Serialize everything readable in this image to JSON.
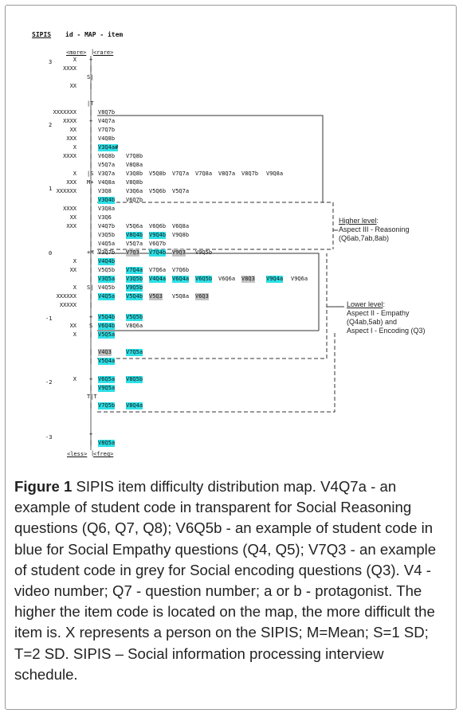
{
  "header": {
    "title": "SIPIS",
    "subtitle": "id - MAP - item"
  },
  "top_labels": {
    "left": "<more>",
    "right": "<rare>"
  },
  "bottom_labels": {
    "left": "<less>",
    "right": "<freq>"
  },
  "scale": [
    "3",
    "2",
    "1",
    "0",
    "-1",
    "-2",
    "-3"
  ],
  "rows": [
    {
      "y": 75,
      "x": "X",
      "m": "+",
      "items": []
    },
    {
      "y": 86,
      "x": "XXXX",
      "m": "|",
      "items": []
    },
    {
      "y": 97,
      "x": "",
      "m": "S|",
      "items": []
    },
    {
      "y": 108,
      "x": "XX",
      "m": "|",
      "items": []
    },
    {
      "y": 130,
      "x": "",
      "m": "|T",
      "items": []
    },
    {
      "y": 141,
      "x": "XXXXXXX",
      "m": "|",
      "items": [
        {
          "t": "V8Q7b",
          "c": "n"
        }
      ]
    },
    {
      "y": 152,
      "x": "XXXX",
      "m": "+",
      "items": [
        {
          "t": "V4Q7a",
          "c": "n"
        }
      ]
    },
    {
      "y": 163,
      "x": "XX",
      "m": "|",
      "items": [
        {
          "t": "V7Q7b",
          "c": "n"
        }
      ]
    },
    {
      "y": 174,
      "x": "XXX",
      "m": "|",
      "items": [
        {
          "t": "V4Q8b",
          "c": "n"
        }
      ]
    },
    {
      "y": 185,
      "x": "X",
      "m": "|",
      "items": [
        {
          "t": "V3Q4a#",
          "c": "b"
        }
      ]
    },
    {
      "y": 196,
      "x": "XXXX",
      "m": "|",
      "items": [
        {
          "t": "V6Q8b",
          "c": "n"
        },
        {
          "t": "V7Q8b",
          "c": "n"
        }
      ]
    },
    {
      "y": 207,
      "x": "",
      "m": "|",
      "items": [
        {
          "t": "V5Q7a",
          "c": "n"
        },
        {
          "t": "V8Q8a",
          "c": "n"
        }
      ]
    },
    {
      "y": 218,
      "x": "X",
      "m": "|S",
      "items": [
        {
          "t": "V3Q7a",
          "c": "n"
        },
        {
          "t": "V3Q8b",
          "c": "n"
        },
        {
          "t": "V5Q8b",
          "c": "n"
        },
        {
          "t": "V7Q7a",
          "c": "n"
        },
        {
          "t": "V7Q8a",
          "c": "n"
        },
        {
          "t": "V8Q7a",
          "c": "n"
        },
        {
          "t": "V8Q7b",
          "c": "n"
        },
        {
          "t": "V9Q8a",
          "c": "n"
        }
      ]
    },
    {
      "y": 229,
      "x": "XXX",
      "m": "M+",
      "items": [
        {
          "t": "V4Q8a",
          "c": "n"
        },
        {
          "t": "V8Q8b",
          "c": "n"
        }
      ]
    },
    {
      "y": 240,
      "x": "XXXXXX",
      "m": "|",
      "items": [
        {
          "t": "V3Q8",
          "c": "n"
        },
        {
          "t": "V3Q6a",
          "c": "n"
        },
        {
          "t": "V5Q6b",
          "c": "n"
        },
        {
          "t": "V5Q7a",
          "c": "n"
        }
      ]
    },
    {
      "y": 251,
      "x": "",
      "m": "|",
      "items": [
        {
          "t": "V3Q4b",
          "c": "b"
        },
        {
          "t": "V6Q7b",
          "c": "n"
        }
      ]
    },
    {
      "y": 262,
      "x": "XXXX",
      "m": "|",
      "items": [
        {
          "t": "V3Q8a",
          "c": "n"
        }
      ]
    },
    {
      "y": 273,
      "x": "XX",
      "m": "|",
      "items": [
        {
          "t": "V3Q6",
          "c": "n"
        }
      ]
    },
    {
      "y": 284,
      "x": "XXX",
      "m": "|",
      "items": [
        {
          "t": "V4Q7b",
          "c": "n"
        },
        {
          "t": "V5Q6a",
          "c": "n"
        },
        {
          "t": "V6Q6b",
          "c": "n"
        },
        {
          "t": "V6Q8a",
          "c": "n"
        }
      ]
    },
    {
      "y": 295,
      "x": "",
      "m": "|",
      "items": [
        {
          "t": "V3Q5b",
          "c": "n"
        },
        {
          "t": "V8Q4b",
          "c": "b"
        },
        {
          "t": "V9Q4b",
          "c": "b"
        },
        {
          "t": "V9Q8b",
          "c": "n"
        }
      ]
    },
    {
      "y": 306,
      "x": "",
      "m": "|",
      "items": [
        {
          "t": "V4Q5a",
          "c": "n"
        },
        {
          "t": "V5Q7a",
          "c": "n"
        },
        {
          "t": "V6Q7b",
          "c": "n"
        }
      ]
    },
    {
      "y": 317,
      "x": "",
      "m": "+M",
      "items": [
        {
          "t": "V3Q7b",
          "c": "n"
        },
        {
          "t": "V7Q3",
          "c": "g"
        },
        {
          "t": "V7Q4b",
          "c": "b"
        },
        {
          "t": "V9Q3",
          "c": "g"
        },
        {
          "t": "V9Q5b",
          "c": "n"
        }
      ]
    },
    {
      "y": 328,
      "x": "X",
      "m": "|",
      "items": [
        {
          "t": "V4Q4b",
          "c": "b"
        }
      ]
    },
    {
      "y": 339,
      "x": "XX",
      "m": "|",
      "items": [
        {
          "t": "V5Q5b",
          "c": "n"
        },
        {
          "t": "V7Q4a",
          "c": "b"
        },
        {
          "t": "V7Q6a",
          "c": "n"
        },
        {
          "t": "V7Q6b",
          "c": "n"
        }
      ]
    },
    {
      "y": 350,
      "x": "",
      "m": "|",
      "items": [
        {
          "t": "V3Q5a",
          "c": "b"
        },
        {
          "t": "V3Q5b",
          "c": "b"
        },
        {
          "t": "V4Q4a",
          "c": "b"
        },
        {
          "t": "V6Q4a",
          "c": "b"
        },
        {
          "t": "V6Q5b",
          "c": "b"
        },
        {
          "t": "V6Q6a",
          "c": "n"
        },
        {
          "t": "V8Q3",
          "c": "g"
        },
        {
          "t": "V9Q4a",
          "c": "b"
        },
        {
          "t": "V9Q6a",
          "c": "n"
        }
      ]
    },
    {
      "y": 361,
      "x": "X",
      "m": "S|",
      "items": [
        {
          "t": "V4Q5b",
          "c": "n"
        },
        {
          "t": "V9Q5b",
          "c": "b"
        }
      ]
    },
    {
      "y": 372,
      "x": "XXXXXX",
      "m": "|",
      "items": [
        {
          "t": "V4Q5a",
          "c": "b"
        },
        {
          "t": "V5Q4b",
          "c": "b"
        },
        {
          "t": "V5Q3",
          "c": "g"
        },
        {
          "t": "V5Q8a",
          "c": "n"
        },
        {
          "t": "V6Q3",
          "c": "g"
        }
      ]
    },
    {
      "y": 383,
      "x": "XXXXX",
      "m": "|",
      "items": []
    },
    {
      "y": 398,
      "x": "",
      "m": "+",
      "items": [
        {
          "t": "V5Q4b",
          "c": "b"
        },
        {
          "t": "V5Q5b",
          "c": "b"
        }
      ]
    },
    {
      "y": 409,
      "x": "XX",
      "m": "S",
      "items": [
        {
          "t": "V6Q4b",
          "c": "b"
        },
        {
          "t": "V8Q6a",
          "c": "n"
        }
      ]
    },
    {
      "y": 420,
      "x": "X",
      "m": "|",
      "items": [
        {
          "t": "V5Q5a",
          "c": "b"
        }
      ]
    },
    {
      "y": 442,
      "x": "",
      "m": "|",
      "items": [
        {
          "t": "V4Q3",
          "c": "g"
        },
        {
          "t": "V7Q5a",
          "c": "b"
        }
      ]
    },
    {
      "y": 453,
      "x": "",
      "m": "|",
      "items": [
        {
          "t": "V5Q4a",
          "c": "b"
        }
      ]
    },
    {
      "y": 476,
      "x": "X",
      "m": "+",
      "items": [
        {
          "t": "V6Q5a",
          "c": "b"
        },
        {
          "t": "V8Q5b",
          "c": "b"
        }
      ]
    },
    {
      "y": 487,
      "x": "",
      "m": "|",
      "items": [
        {
          "t": "V9Q5a",
          "c": "b"
        }
      ]
    },
    {
      "y": 498,
      "x": "",
      "m": "T|T",
      "items": []
    },
    {
      "y": 509,
      "x": "",
      "m": "|",
      "items": [
        {
          "t": "V7Q5b",
          "c": "b"
        },
        {
          "t": "V8Q4a",
          "c": "b"
        }
      ]
    },
    {
      "y": 545,
      "x": "",
      "m": "+",
      "items": []
    },
    {
      "y": 556,
      "x": "",
      "m": "|",
      "items": [
        {
          "t": "V8Q5a",
          "c": "b"
        }
      ]
    }
  ],
  "levels": {
    "higher": {
      "title": "Higher level",
      "suffix": ":",
      "line1": "Aspect III - Reasoning",
      "line2": "(Q6ab,7ab,8ab)"
    },
    "lower": {
      "title": "Lower level",
      "suffix": ":",
      "line1": "Aspect II - Empathy",
      "line2": "(Q4ab,5ab) and",
      "line3": "Aspect I - Encoding (Q3)"
    }
  },
  "colors": {
    "blue": "#2ee0e6",
    "grey": "#c4c4c4",
    "frame": "#9a9a9a"
  },
  "caption": {
    "label": "Figure 1",
    "text": " SIPIS item difficulty distribution map. V4Q7a - an example of student code in transparent for Social Reasoning questions (Q6, Q7, Q8); V6Q5b - an example of student code in blue for Social Empathy questions (Q4, Q5); V7Q3 - an example of student code in grey for Social encoding questions (Q3). V4 - video number; Q7 - question number; a or b - protagonist. The higher the item code is located on the map, the more difficult the item is. X represents a person on the SIPIS; M=Mean; S=1 SD; T=2 SD. SIPIS – Social information processing interview schedule."
  }
}
